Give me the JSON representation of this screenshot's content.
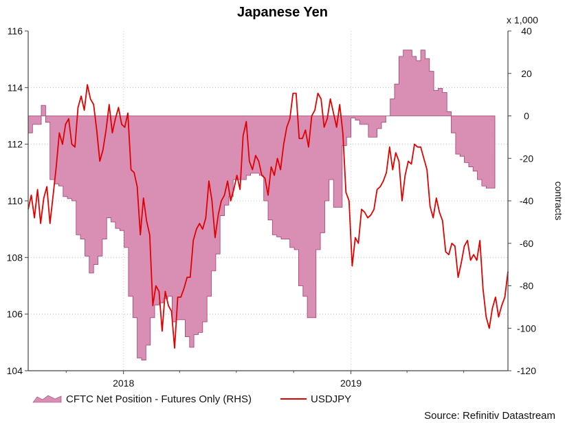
{
  "chart_data": {
    "type": "line+area",
    "title": "Japanese Yen",
    "x_axis": {
      "type": "date",
      "range": [
        "2017-08-01",
        "2019-09-10"
      ],
      "ticks": [
        {
          "date": "2018-01-01",
          "label": "2018"
        },
        {
          "date": "2019-01-01",
          "label": "2019"
        }
      ],
      "grid": true
    },
    "y_left": {
      "range": [
        104,
        116
      ],
      "ticks": [
        104,
        106,
        108,
        110,
        112,
        114,
        116
      ],
      "grid": true
    },
    "y_right": {
      "range": [
        -120,
        40
      ],
      "ticks": [
        -120,
        -100,
        -80,
        -60,
        -40,
        -20,
        0,
        20,
        40
      ],
      "label": "contracts",
      "unit_label": "x 1,000"
    },
    "series": [
      {
        "name": "CFTC Net Position - Futures Only (RHS)",
        "type": "area",
        "axis": "right",
        "color": "#d98fb3",
        "line_color": "#a04070",
        "points": [
          [
            "2017-08-01",
            -8
          ],
          [
            "2017-08-08",
            -4
          ],
          [
            "2017-08-15",
            -4
          ],
          [
            "2017-08-22",
            5
          ],
          [
            "2017-08-29",
            -3
          ],
          [
            "2017-09-05",
            -30
          ],
          [
            "2017-09-12",
            -32
          ],
          [
            "2017-09-19",
            -33
          ],
          [
            "2017-09-26",
            -38
          ],
          [
            "2017-10-03",
            -39
          ],
          [
            "2017-10-10",
            -40
          ],
          [
            "2017-10-17",
            -56
          ],
          [
            "2017-10-24",
            -58
          ],
          [
            "2017-10-31",
            -66
          ],
          [
            "2017-11-07",
            -74
          ],
          [
            "2017-11-14",
            -70
          ],
          [
            "2017-11-21",
            -66
          ],
          [
            "2017-11-28",
            -58
          ],
          [
            "2017-12-05",
            -48
          ],
          [
            "2017-12-12",
            -50
          ],
          [
            "2017-12-19",
            -53
          ],
          [
            "2017-12-26",
            -54
          ],
          [
            "2018-01-02",
            -62
          ],
          [
            "2018-01-09",
            -85
          ],
          [
            "2018-01-16",
            -95
          ],
          [
            "2018-01-23",
            -114
          ],
          [
            "2018-01-30",
            -115
          ],
          [
            "2018-02-06",
            -108
          ],
          [
            "2018-02-13",
            -95
          ],
          [
            "2018-02-20",
            -89
          ],
          [
            "2018-02-27",
            -88
          ],
          [
            "2018-03-06",
            -86
          ],
          [
            "2018-03-13",
            -85
          ],
          [
            "2018-03-20",
            -97
          ],
          [
            "2018-03-27",
            -96
          ],
          [
            "2018-04-03",
            -96
          ],
          [
            "2018-04-10",
            -104
          ],
          [
            "2018-04-17",
            -109
          ],
          [
            "2018-04-24",
            -103
          ],
          [
            "2018-05-01",
            -102
          ],
          [
            "2018-05-08",
            -97
          ],
          [
            "2018-05-15",
            -85
          ],
          [
            "2018-05-22",
            -73
          ],
          [
            "2018-05-29",
            -65
          ],
          [
            "2018-06-05",
            -47
          ],
          [
            "2018-06-12",
            -42
          ],
          [
            "2018-06-19",
            -38
          ],
          [
            "2018-06-26",
            -30
          ],
          [
            "2018-07-03",
            -30
          ],
          [
            "2018-07-10",
            -30
          ],
          [
            "2018-07-17",
            -28
          ],
          [
            "2018-07-24",
            -27
          ],
          [
            "2018-07-31",
            -27
          ],
          [
            "2018-08-07",
            -28
          ],
          [
            "2018-08-14",
            -40
          ],
          [
            "2018-08-21",
            -49
          ],
          [
            "2018-08-28",
            -56
          ],
          [
            "2018-09-04",
            -57
          ],
          [
            "2018-09-11",
            -58
          ],
          [
            "2018-09-18",
            -58
          ],
          [
            "2018-09-25",
            -62
          ],
          [
            "2018-10-02",
            -63
          ],
          [
            "2018-10-09",
            -80
          ],
          [
            "2018-10-16",
            -85
          ],
          [
            "2018-10-23",
            -95
          ],
          [
            "2018-10-30",
            -95
          ],
          [
            "2018-11-06",
            -63
          ],
          [
            "2018-11-13",
            -55
          ],
          [
            "2018-11-20",
            -40
          ],
          [
            "2018-11-27",
            -30
          ],
          [
            "2018-12-04",
            -43
          ],
          [
            "2018-12-11",
            -43
          ],
          [
            "2018-12-18",
            -14
          ],
          [
            "2018-12-25",
            -10
          ],
          [
            "2019-01-01",
            -1
          ],
          [
            "2019-01-08",
            -2
          ],
          [
            "2019-01-15",
            -4
          ],
          [
            "2019-01-22",
            -4
          ],
          [
            "2019-01-29",
            -10
          ],
          [
            "2019-02-05",
            -10
          ],
          [
            "2019-02-12",
            -6
          ],
          [
            "2019-02-19",
            -3
          ],
          [
            "2019-02-26",
            0
          ],
          [
            "2019-03-05",
            8
          ],
          [
            "2019-03-12",
            15
          ],
          [
            "2019-03-19",
            28
          ],
          [
            "2019-03-26",
            31
          ],
          [
            "2019-04-02",
            31
          ],
          [
            "2019-04-09",
            28
          ],
          [
            "2019-04-16",
            26
          ],
          [
            "2019-04-23",
            31
          ],
          [
            "2019-04-30",
            27
          ],
          [
            "2019-05-07",
            21
          ],
          [
            "2019-05-14",
            12
          ],
          [
            "2019-05-21",
            13
          ],
          [
            "2019-05-28",
            11
          ],
          [
            "2019-06-04",
            2
          ],
          [
            "2019-06-11",
            -8
          ],
          [
            "2019-06-18",
            -18
          ],
          [
            "2019-06-25",
            -19
          ],
          [
            "2019-07-02",
            -22
          ],
          [
            "2019-07-09",
            -24
          ],
          [
            "2019-07-16",
            -26
          ],
          [
            "2019-07-23",
            -30
          ],
          [
            "2019-07-30",
            -33
          ],
          [
            "2019-08-06",
            -34
          ],
          [
            "2019-08-13",
            -34
          ]
        ]
      },
      {
        "name": "USDJPY",
        "type": "line",
        "axis": "left",
        "color": "#e00000",
        "points": [
          [
            "2017-08-01",
            109.7
          ],
          [
            "2017-08-06",
            110.2
          ],
          [
            "2017-08-11",
            109.4
          ],
          [
            "2017-08-16",
            110.4
          ],
          [
            "2017-08-21",
            109.2
          ],
          [
            "2017-08-26",
            110.1
          ],
          [
            "2017-08-31",
            110.5
          ],
          [
            "2017-09-05",
            109.2
          ],
          [
            "2017-09-10",
            110.2
          ],
          [
            "2017-09-15",
            111.2
          ],
          [
            "2017-09-20",
            112.4
          ],
          [
            "2017-09-25",
            112.0
          ],
          [
            "2017-09-30",
            112.7
          ],
          [
            "2017-10-05",
            112.9
          ],
          [
            "2017-10-10",
            112.0
          ],
          [
            "2017-10-15",
            111.9
          ],
          [
            "2017-10-20",
            113.3
          ],
          [
            "2017-10-25",
            113.7
          ],
          [
            "2017-10-30",
            113.2
          ],
          [
            "2017-11-04",
            114.1
          ],
          [
            "2017-11-09",
            113.6
          ],
          [
            "2017-11-14",
            113.4
          ],
          [
            "2017-11-19",
            112.5
          ],
          [
            "2017-11-24",
            111.4
          ],
          [
            "2017-11-29",
            111.8
          ],
          [
            "2017-12-04",
            112.5
          ],
          [
            "2017-12-09",
            113.4
          ],
          [
            "2017-12-14",
            112.4
          ],
          [
            "2017-12-19",
            112.9
          ],
          [
            "2017-12-24",
            113.3
          ],
          [
            "2017-12-29",
            112.7
          ],
          [
            "2018-01-03",
            112.6
          ],
          [
            "2018-01-08",
            113.1
          ],
          [
            "2018-01-13",
            111.1
          ],
          [
            "2018-01-18",
            111.0
          ],
          [
            "2018-01-23",
            110.5
          ],
          [
            "2018-01-28",
            108.8
          ],
          [
            "2018-02-02",
            110.1
          ],
          [
            "2018-02-07",
            109.3
          ],
          [
            "2018-02-12",
            108.8
          ],
          [
            "2018-02-17",
            106.3
          ],
          [
            "2018-02-22",
            107.0
          ],
          [
            "2018-02-27",
            106.8
          ],
          [
            "2018-03-04",
            105.4
          ],
          [
            "2018-03-09",
            106.8
          ],
          [
            "2018-03-14",
            106.3
          ],
          [
            "2018-03-19",
            106.1
          ],
          [
            "2018-03-24",
            104.8
          ],
          [
            "2018-03-29",
            106.6
          ],
          [
            "2018-04-03",
            106.6
          ],
          [
            "2018-04-08",
            106.9
          ],
          [
            "2018-04-13",
            107.3
          ],
          [
            "2018-04-18",
            107.3
          ],
          [
            "2018-04-23",
            108.6
          ],
          [
            "2018-04-28",
            109.0
          ],
          [
            "2018-05-03",
            109.2
          ],
          [
            "2018-05-08",
            109.0
          ],
          [
            "2018-05-13",
            109.4
          ],
          [
            "2018-05-18",
            110.7
          ],
          [
            "2018-05-23",
            110.0
          ],
          [
            "2018-05-28",
            108.7
          ],
          [
            "2018-06-02",
            109.5
          ],
          [
            "2018-06-07",
            110.0
          ],
          [
            "2018-06-12",
            110.2
          ],
          [
            "2018-06-17",
            110.7
          ],
          [
            "2018-06-22",
            110.0
          ],
          [
            "2018-06-27",
            110.4
          ],
          [
            "2018-07-02",
            110.9
          ],
          [
            "2018-07-07",
            110.4
          ],
          [
            "2018-07-12",
            112.3
          ],
          [
            "2018-07-17",
            112.8
          ],
          [
            "2018-07-22",
            111.4
          ],
          [
            "2018-07-27",
            111.1
          ],
          [
            "2018-08-01",
            111.6
          ],
          [
            "2018-08-06",
            111.4
          ],
          [
            "2018-08-11",
            110.9
          ],
          [
            "2018-08-16",
            110.8
          ],
          [
            "2018-08-21",
            110.2
          ],
          [
            "2018-08-26",
            111.2
          ],
          [
            "2018-08-31",
            110.9
          ],
          [
            "2018-09-05",
            111.5
          ],
          [
            "2018-09-10",
            111.1
          ],
          [
            "2018-09-15",
            112.0
          ],
          [
            "2018-09-20",
            112.6
          ],
          [
            "2018-09-25",
            112.9
          ],
          [
            "2018-09-30",
            113.8
          ],
          [
            "2018-10-05",
            113.8
          ],
          [
            "2018-10-10",
            112.2
          ],
          [
            "2018-10-15",
            112.2
          ],
          [
            "2018-10-20",
            112.5
          ],
          [
            "2018-10-25",
            111.9
          ],
          [
            "2018-10-30",
            113.0
          ],
          [
            "2018-11-04",
            113.2
          ],
          [
            "2018-11-09",
            113.8
          ],
          [
            "2018-11-14",
            113.6
          ],
          [
            "2018-11-19",
            112.6
          ],
          [
            "2018-11-24",
            112.9
          ],
          [
            "2018-11-29",
            113.6
          ],
          [
            "2018-12-04",
            113.1
          ],
          [
            "2018-12-09",
            112.6
          ],
          [
            "2018-12-14",
            113.4
          ],
          [
            "2018-12-19",
            112.4
          ],
          [
            "2018-12-24",
            110.3
          ],
          [
            "2018-12-29",
            110.0
          ],
          [
            "2019-01-03",
            107.7
          ],
          [
            "2019-01-08",
            108.7
          ],
          [
            "2019-01-13",
            108.5
          ],
          [
            "2019-01-18",
            109.7
          ],
          [
            "2019-01-23",
            109.6
          ],
          [
            "2019-01-28",
            109.4
          ],
          [
            "2019-02-02",
            109.5
          ],
          [
            "2019-02-07",
            109.7
          ],
          [
            "2019-02-12",
            110.4
          ],
          [
            "2019-02-17",
            110.5
          ],
          [
            "2019-02-22",
            110.7
          ],
          [
            "2019-02-27",
            111.0
          ],
          [
            "2019-03-04",
            111.9
          ],
          [
            "2019-03-09",
            111.1
          ],
          [
            "2019-03-14",
            111.7
          ],
          [
            "2019-03-19",
            111.4
          ],
          [
            "2019-03-24",
            110.0
          ],
          [
            "2019-03-29",
            110.9
          ],
          [
            "2019-04-03",
            111.4
          ],
          [
            "2019-04-08",
            111.3
          ],
          [
            "2019-04-13",
            112.0
          ],
          [
            "2019-04-18",
            111.9
          ],
          [
            "2019-04-23",
            111.9
          ],
          [
            "2019-04-28",
            111.5
          ],
          [
            "2019-05-03",
            111.1
          ],
          [
            "2019-05-08",
            109.8
          ],
          [
            "2019-05-13",
            109.4
          ],
          [
            "2019-05-18",
            110.1
          ],
          [
            "2019-05-23",
            109.6
          ],
          [
            "2019-05-28",
            109.3
          ],
          [
            "2019-06-02",
            108.2
          ],
          [
            "2019-06-07",
            108.1
          ],
          [
            "2019-06-12",
            108.5
          ],
          [
            "2019-06-17",
            108.4
          ],
          [
            "2019-06-22",
            107.3
          ],
          [
            "2019-06-27",
            107.8
          ],
          [
            "2019-07-02",
            108.4
          ],
          [
            "2019-07-07",
            108.6
          ],
          [
            "2019-07-12",
            107.9
          ],
          [
            "2019-07-17",
            108.1
          ],
          [
            "2019-07-22",
            107.9
          ],
          [
            "2019-07-27",
            108.6
          ],
          [
            "2019-08-01",
            106.9
          ],
          [
            "2019-08-06",
            105.9
          ],
          [
            "2019-08-11",
            105.5
          ],
          [
            "2019-08-16",
            106.2
          ],
          [
            "2019-08-21",
            106.6
          ],
          [
            "2019-08-26",
            105.9
          ],
          [
            "2019-08-31",
            106.3
          ],
          [
            "2019-09-05",
            106.6
          ],
          [
            "2019-09-10",
            107.5
          ]
        ]
      }
    ],
    "legend": {
      "placement": "bottom-left",
      "entries": [
        "CFTC Net Position - Futures Only (RHS)",
        "USDJPY"
      ]
    },
    "source": "Source: Refinitiv Datastream"
  }
}
